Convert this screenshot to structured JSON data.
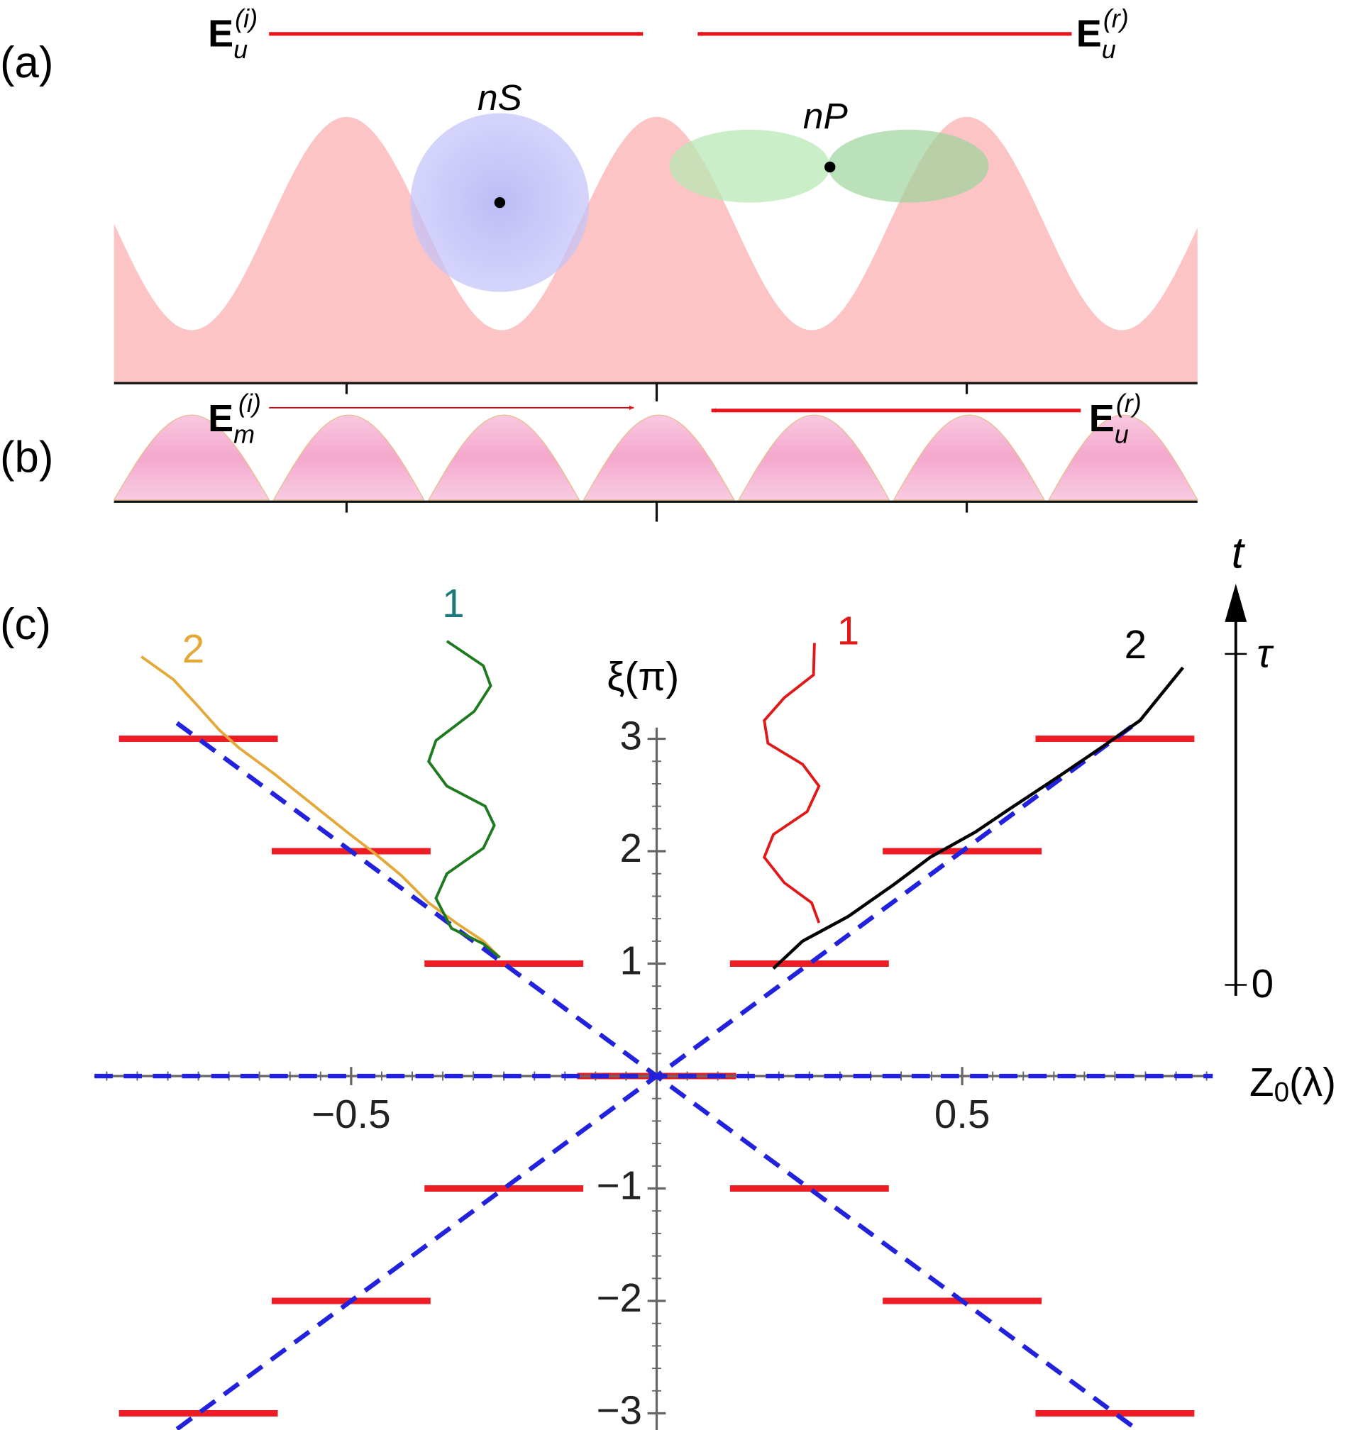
{
  "panel_labels": [
    "(a)",
    "(b)",
    "(c)"
  ],
  "panel_a": {
    "incident": {
      "base": "E",
      "sub": "u",
      "sup": "(i)"
    },
    "reflected": {
      "base": "E",
      "sub": "u",
      "sup": "(r)"
    },
    "state_s": "nS",
    "state_p": "nP"
  },
  "panel_b": {
    "incident": {
      "base": "E",
      "sub": "m",
      "sup": "(i)"
    },
    "reflected": {
      "base": "E",
      "sub": "u",
      "sup": "(r)"
    }
  },
  "panel_c": {
    "xlabel": {
      "base": "Z",
      "sub": "0",
      "rest": "(λ)"
    },
    "ylabel": "ξ(π)",
    "xlim": [
      -0.92,
      0.91
    ],
    "ylim": [
      -3.15,
      3.1
    ],
    "xticks": [
      {
        "value": -0.5,
        "label": "−0.5"
      },
      0.5
    ],
    "yticks": [
      {
        "value": -3,
        "label": "−3"
      },
      {
        "value": -2,
        "label": "−2"
      },
      {
        "value": -1,
        "label": "−1"
      },
      1,
      2,
      3
    ],
    "curve_labels": [
      "2",
      "1",
      "1",
      "2"
    ],
    "time_axis": {
      "label": "t",
      "ticks": [
        "τ",
        "0"
      ]
    }
  }
}
